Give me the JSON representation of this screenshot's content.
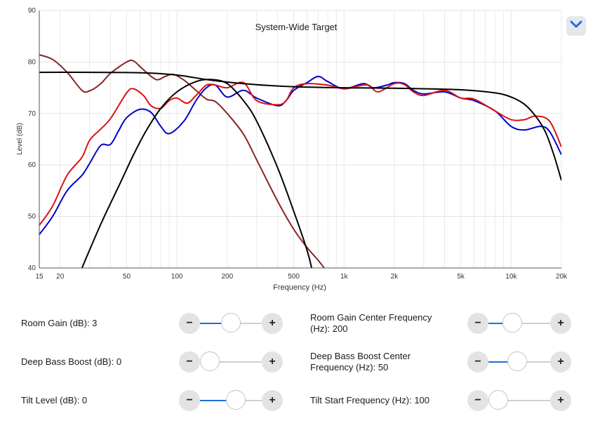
{
  "chart_data": {
    "type": "line",
    "title": "System-Wide Target",
    "xlabel": "Frequency (Hz)",
    "ylabel": "Level (dB)",
    "xscale": "log",
    "xlim": [
      15,
      20000
    ],
    "ylim": [
      40,
      90
    ],
    "grid": true,
    "x_ticks": [
      15,
      20,
      50,
      100,
      200,
      500,
      1000,
      2000,
      5000,
      10000,
      20000
    ],
    "x_tick_labels": [
      "15",
      "20",
      "50",
      "100",
      "200",
      "500",
      "1k",
      "2k",
      "5k",
      "10k",
      "20k"
    ],
    "y_ticks": [
      40,
      50,
      60,
      70,
      80,
      90
    ],
    "y_tick_labels": [
      "40",
      "50",
      "60",
      "70",
      "80",
      "90"
    ],
    "series": [
      {
        "color": "#8b2323",
        "points": [
          [
            15,
            81.4
          ],
          [
            18,
            80.5
          ],
          [
            22,
            78
          ],
          [
            27,
            74.5
          ],
          [
            30,
            74.4
          ],
          [
            35,
            75.8
          ],
          [
            40,
            77.8
          ],
          [
            50,
            80
          ],
          [
            55,
            80.2
          ],
          [
            63,
            78.5
          ],
          [
            75,
            76.6
          ],
          [
            85,
            77.2
          ],
          [
            95,
            77.6
          ],
          [
            110,
            76.5
          ],
          [
            130,
            74.5
          ],
          [
            150,
            72.8
          ],
          [
            170,
            72.3
          ],
          [
            200,
            70
          ],
          [
            250,
            66
          ],
          [
            300,
            61
          ],
          [
            400,
            53
          ],
          [
            500,
            47.5
          ],
          [
            600,
            44
          ],
          [
            700,
            41.5
          ],
          [
            760,
            40
          ]
        ]
      },
      {
        "color": "#0000cc",
        "points": [
          [
            15,
            46.5
          ],
          [
            18,
            50
          ],
          [
            22,
            55
          ],
          [
            27,
            58
          ],
          [
            30,
            60.3
          ],
          [
            35,
            63.8
          ],
          [
            40,
            64
          ],
          [
            45,
            66.8
          ],
          [
            50,
            69.2
          ],
          [
            60,
            70.8
          ],
          [
            70,
            70.2
          ],
          [
            80,
            67.5
          ],
          [
            90,
            66.1
          ],
          [
            110,
            68.5
          ],
          [
            130,
            72.5
          ],
          [
            150,
            75
          ],
          [
            170,
            75.5
          ],
          [
            200,
            73.2
          ],
          [
            250,
            74.5
          ],
          [
            300,
            73
          ],
          [
            400,
            71.5
          ],
          [
            450,
            72.5
          ],
          [
            500,
            74.5
          ],
          [
            600,
            76
          ],
          [
            700,
            77.2
          ],
          [
            800,
            76.2
          ],
          [
            1000,
            74.8
          ],
          [
            1300,
            75.8
          ],
          [
            1500,
            75
          ],
          [
            1800,
            75.5
          ],
          [
            2000,
            76
          ],
          [
            2300,
            75.8
          ],
          [
            2600,
            74.5
          ],
          [
            3000,
            73.8
          ],
          [
            4000,
            74.2
          ],
          [
            5000,
            73
          ],
          [
            6000,
            72.5
          ],
          [
            8000,
            70.5
          ],
          [
            10000,
            67.5
          ],
          [
            12000,
            66.8
          ],
          [
            15000,
            67.5
          ],
          [
            17000,
            66.5
          ],
          [
            20000,
            62
          ]
        ]
      },
      {
        "color": "#dd1111",
        "points": [
          [
            15,
            48.3
          ],
          [
            18,
            52
          ],
          [
            22,
            58
          ],
          [
            27,
            61.5
          ],
          [
            30,
            64.8
          ],
          [
            35,
            67
          ],
          [
            40,
            69
          ],
          [
            50,
            74
          ],
          [
            55,
            74.8
          ],
          [
            63,
            73.5
          ],
          [
            70,
            71.5
          ],
          [
            80,
            71
          ],
          [
            90,
            72.5
          ],
          [
            100,
            73
          ],
          [
            115,
            72
          ],
          [
            130,
            73.5
          ],
          [
            150,
            75.5
          ],
          [
            170,
            75.5
          ],
          [
            200,
            75
          ],
          [
            250,
            76
          ],
          [
            300,
            72.5
          ],
          [
            400,
            71.7
          ],
          [
            450,
            72.5
          ],
          [
            500,
            75
          ],
          [
            600,
            75.8
          ],
          [
            800,
            75.5
          ],
          [
            1000,
            74.8
          ],
          [
            1200,
            75.3
          ],
          [
            1400,
            75.5
          ],
          [
            1600,
            74.2
          ],
          [
            2000,
            75.8
          ],
          [
            2300,
            75.6
          ],
          [
            2600,
            74.2
          ],
          [
            3000,
            73.5
          ],
          [
            4000,
            74.5
          ],
          [
            5000,
            73
          ],
          [
            6000,
            72.8
          ],
          [
            8000,
            70.5
          ],
          [
            10000,
            68.8
          ],
          [
            12000,
            68.8
          ],
          [
            14000,
            69.5
          ],
          [
            17000,
            68.5
          ],
          [
            20000,
            63.5
          ]
        ]
      },
      {
        "color": "#000000",
        "points": [
          [
            15,
            78
          ],
          [
            30,
            78
          ],
          [
            50,
            77.95
          ],
          [
            70,
            77.85
          ],
          [
            90,
            77.6
          ],
          [
            110,
            77.3
          ],
          [
            150,
            76.6
          ],
          [
            200,
            76.1
          ],
          [
            300,
            75.6
          ],
          [
            500,
            75.2
          ],
          [
            1000,
            75
          ],
          [
            2000,
            74.9
          ],
          [
            5000,
            74.6
          ],
          [
            8000,
            74
          ],
          [
            10000,
            73.2
          ],
          [
            12000,
            71.8
          ],
          [
            14000,
            69.5
          ],
          [
            16000,
            66.5
          ],
          [
            18000,
            62
          ],
          [
            20000,
            57
          ]
        ]
      },
      {
        "color": "#000000",
        "points": [
          [
            27,
            40
          ],
          [
            35,
            48.5
          ],
          [
            45,
            56
          ],
          [
            55,
            62
          ],
          [
            65,
            66.5
          ],
          [
            80,
            71
          ],
          [
            100,
            74.2
          ],
          [
            130,
            76.2
          ],
          [
            160,
            76.6
          ],
          [
            200,
            75.8
          ],
          [
            250,
            72.5
          ],
          [
            300,
            68.5
          ],
          [
            400,
            59.5
          ],
          [
            500,
            51
          ],
          [
            600,
            43.5
          ],
          [
            640,
            40
          ]
        ]
      }
    ]
  },
  "header": {
    "collapse_icon": "chevron-down-icon",
    "accent": "#1e6fd9"
  },
  "controls": [
    {
      "label": "Room Gain (dB): 3",
      "level": 0.5
    },
    {
      "label": "Room Gain Center Frequency (Hz): 200",
      "level": 0.39
    },
    {
      "label": "Deep Bass Boost (dB): 0",
      "level": 0.0
    },
    {
      "label": "Deep Bass Boost Center Frequency (Hz): 50",
      "level": 0.47
    },
    {
      "label": "Tilt Level (dB): 0",
      "level": 0.58
    },
    {
      "label": "Tilt Start Frequency (Hz): 100",
      "level": 0.0
    }
  ],
  "stepper": {
    "minus": "−",
    "plus": "+"
  }
}
